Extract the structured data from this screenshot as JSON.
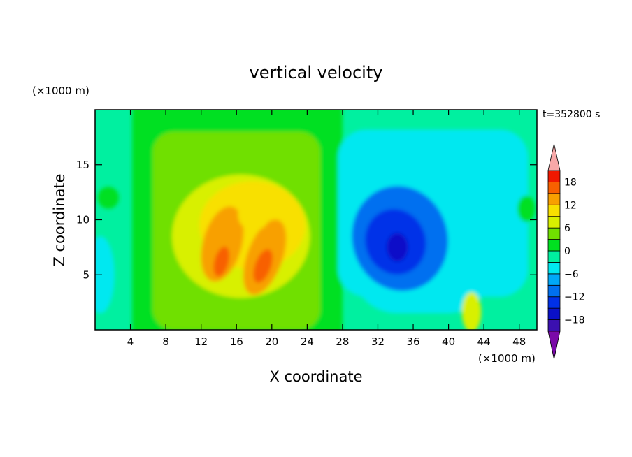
{
  "chart_data": {
    "type": "heatmap",
    "title": "vertical velocity",
    "xlabel": "X coordinate",
    "ylabel": "Z coordinate",
    "x_unit": "(×1000 m)",
    "y_unit": "(×1000 m)",
    "time_label": "t=352800 s",
    "xlim": [
      0,
      50
    ],
    "ylim": [
      0,
      20
    ],
    "xticks": [
      4,
      8,
      12,
      16,
      20,
      24,
      28,
      32,
      36,
      40,
      44,
      48
    ],
    "yticks": [
      5,
      10,
      15
    ],
    "colorbar": {
      "levels": [
        -21,
        -18,
        -15,
        -12,
        -9,
        -6,
        -3,
        0,
        3,
        6,
        9,
        12,
        15,
        18,
        21
      ],
      "ticks": [
        18,
        12,
        6,
        0,
        -6,
        -12,
        -18
      ],
      "colors": [
        "#6a0dad",
        "#3b10b0",
        "#0a10c8",
        "#0030e8",
        "#0070f0",
        "#00a8f8",
        "#00e8f0",
        "#00f0a0",
        "#00e020",
        "#70e000",
        "#d8f000",
        "#f8e000",
        "#f8a000",
        "#f86000",
        "#f01800",
        "#f8a0a0"
      ],
      "under_color": "#7a0aa8",
      "over_color": "#f8a8a8"
    },
    "field_features": [
      {
        "x": 14.5,
        "z": 7.5,
        "w": 13
      },
      {
        "x": 19,
        "z": 6.0,
        "w": 17
      },
      {
        "x": 18,
        "z": 11,
        "w": 8
      },
      {
        "x": 34,
        "z": 7.5,
        "w": -15
      },
      {
        "x": 36,
        "z": 10,
        "w": -10
      },
      {
        "x": 42.5,
        "z": 1.5,
        "w": 6
      },
      {
        "x": 0.8,
        "z": 5,
        "w": -6
      }
    ]
  }
}
